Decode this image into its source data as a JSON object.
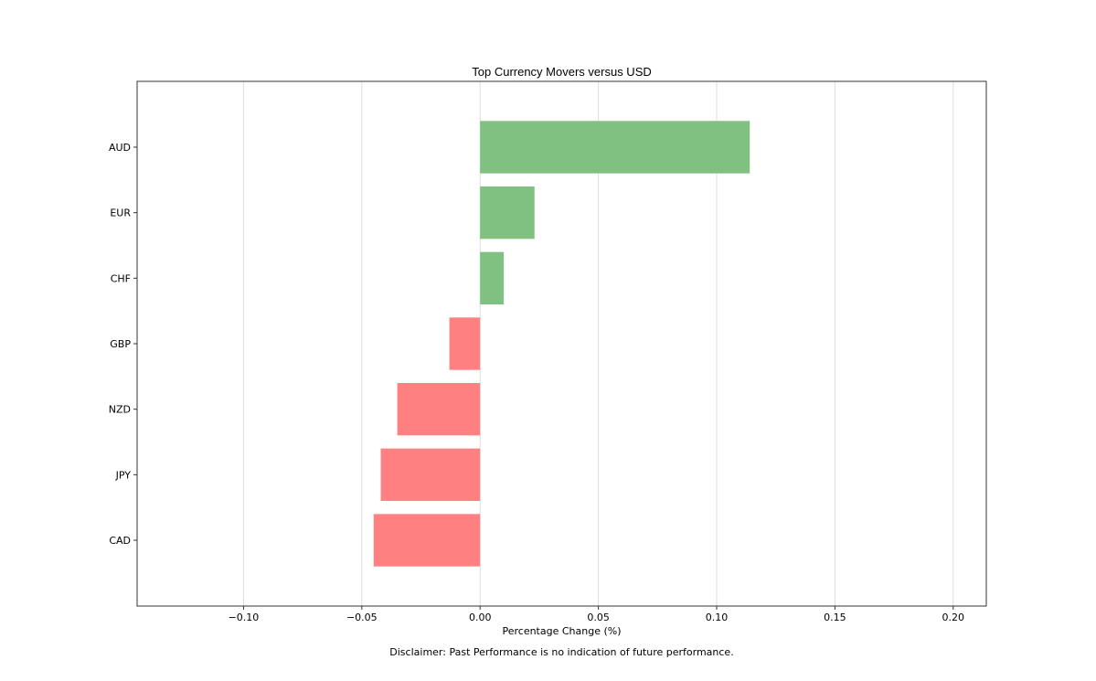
{
  "chart_data": {
    "type": "bar",
    "orientation": "horizontal",
    "title": "Top Currency Movers versus USD",
    "xlabel": "Percentage Change (%)",
    "ylabel": "",
    "categories": [
      "AUD",
      "EUR",
      "CHF",
      "GBP",
      "NZD",
      "JPY",
      "CAD"
    ],
    "values": [
      0.114,
      0.023,
      0.01,
      -0.013,
      -0.035,
      -0.042,
      -0.045
    ],
    "xlim": [
      -0.145,
      0.214
    ],
    "xticks": [
      -0.1,
      -0.05,
      0.0,
      0.05,
      0.1,
      0.15,
      0.2
    ],
    "xtick_labels": [
      "−0.10",
      "−0.05",
      "0.00",
      "0.05",
      "0.10",
      "0.15",
      "0.20"
    ],
    "grid": "vertical",
    "colors": {
      "positive": "#80c080",
      "negative": "#ff8080",
      "grid": "#dcdcdc",
      "frame": "#333333"
    },
    "footnote": "Disclaimer: Past Performance is no indication of future performance."
  }
}
